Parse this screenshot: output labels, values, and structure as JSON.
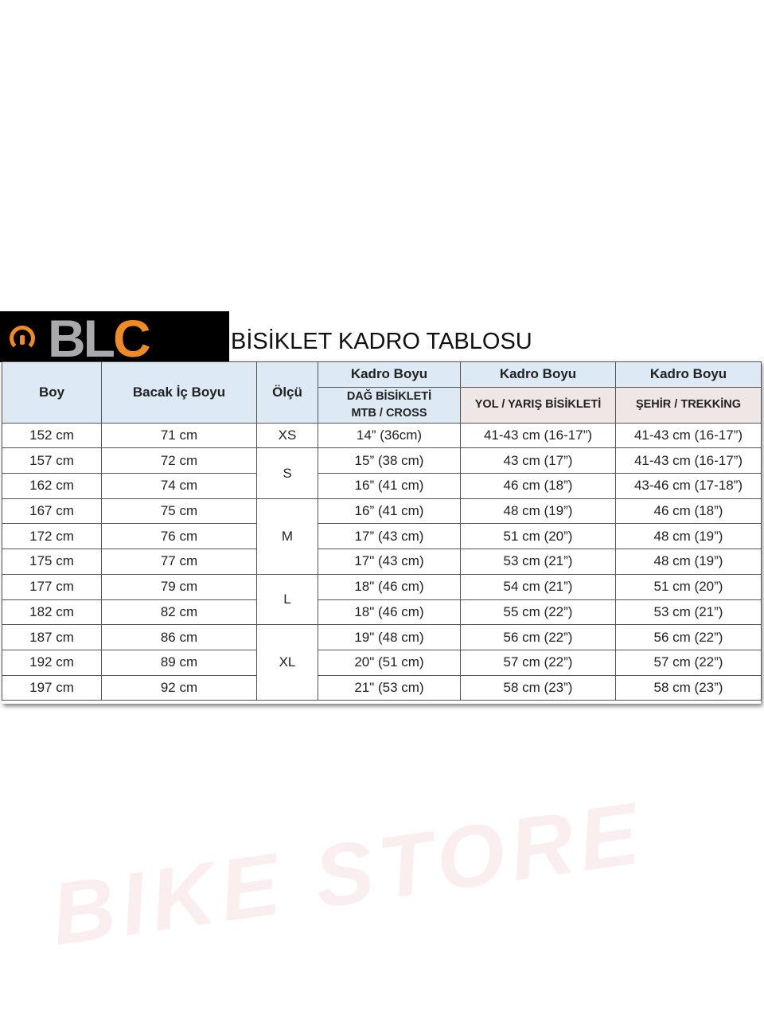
{
  "logo": {
    "text": "BLC",
    "accent": "#f08a24"
  },
  "title": "BİSİKLET KADRO TABLOSU",
  "watermark": "BIKE STORE",
  "headers": {
    "boy": "Boy",
    "bacak": "Bacak İç Boyu",
    "olcu": "Ölçü",
    "kadro": "Kadro Boyu",
    "mtb": [
      "DAĞ BİSİKLETİ",
      "MTB / CROSS"
    ],
    "yol": "YOL / YARIŞ BİSİKLETİ",
    "sehir": "ŞEHİR / TREKKİNG"
  },
  "rows": [
    {
      "boy": "152 cm",
      "bacak": "71 cm",
      "mtb": "14” (36cm)",
      "yol": "41-43 cm (16-17”)",
      "sehir": "41-43 cm (16-17”)"
    },
    {
      "boy": "157 cm",
      "bacak": "72 cm",
      "mtb": "15” (38 cm)",
      "yol": "43 cm (17”)",
      "sehir": "41-43 cm (16-17”)"
    },
    {
      "boy": "162 cm",
      "bacak": "74 cm",
      "mtb": "16” (41 cm)",
      "yol": "46 cm (18”)",
      "sehir": "43-46 cm (17-18”)"
    },
    {
      "boy": "167 cm",
      "bacak": "75 cm",
      "mtb": "16” (41 cm)",
      "yol": "48 cm (19”)",
      "sehir": "46 cm (18”)"
    },
    {
      "boy": "172 cm",
      "bacak": "76 cm",
      "mtb": "17” (43 cm)",
      "yol": "51 cm (20”)",
      "sehir": "48 cm (19”)"
    },
    {
      "boy": "175 cm",
      "bacak": "77 cm",
      "mtb": "17\" (43 cm)",
      "yol": "53 cm (21”)",
      "sehir": "48 cm (19”)"
    },
    {
      "boy": "177 cm",
      "bacak": "79 cm",
      "mtb": "18\" (46 cm)",
      "yol": "54 cm (21”)",
      "sehir": "51 cm (20”)"
    },
    {
      "boy": "182 cm",
      "bacak": "82 cm",
      "mtb": "18\" (46 cm)",
      "yol": "55 cm (22”)",
      "sehir": "53 cm (21”)"
    },
    {
      "boy": "187 cm",
      "bacak": "86 cm",
      "mtb": "19\" (48 cm)",
      "yol": "56 cm (22”)",
      "sehir": "56 cm (22”)"
    },
    {
      "boy": "192 cm",
      "bacak": "89 cm",
      "mtb": "20\" (51 cm)",
      "yol": "57 cm (22”)",
      "sehir": "57 cm (22”)"
    },
    {
      "boy": "197 cm",
      "bacak": "92 cm",
      "mtb": "21\" (53 cm)",
      "yol": "58 cm (23”)",
      "sehir": "58 cm (23”)"
    }
  ],
  "sizes": [
    {
      "label": "XS",
      "span": 1
    },
    {
      "label": "S",
      "span": 2
    },
    {
      "label": "M",
      "span": 3
    },
    {
      "label": "L",
      "span": 2
    },
    {
      "label": "XL",
      "span": 3
    }
  ]
}
